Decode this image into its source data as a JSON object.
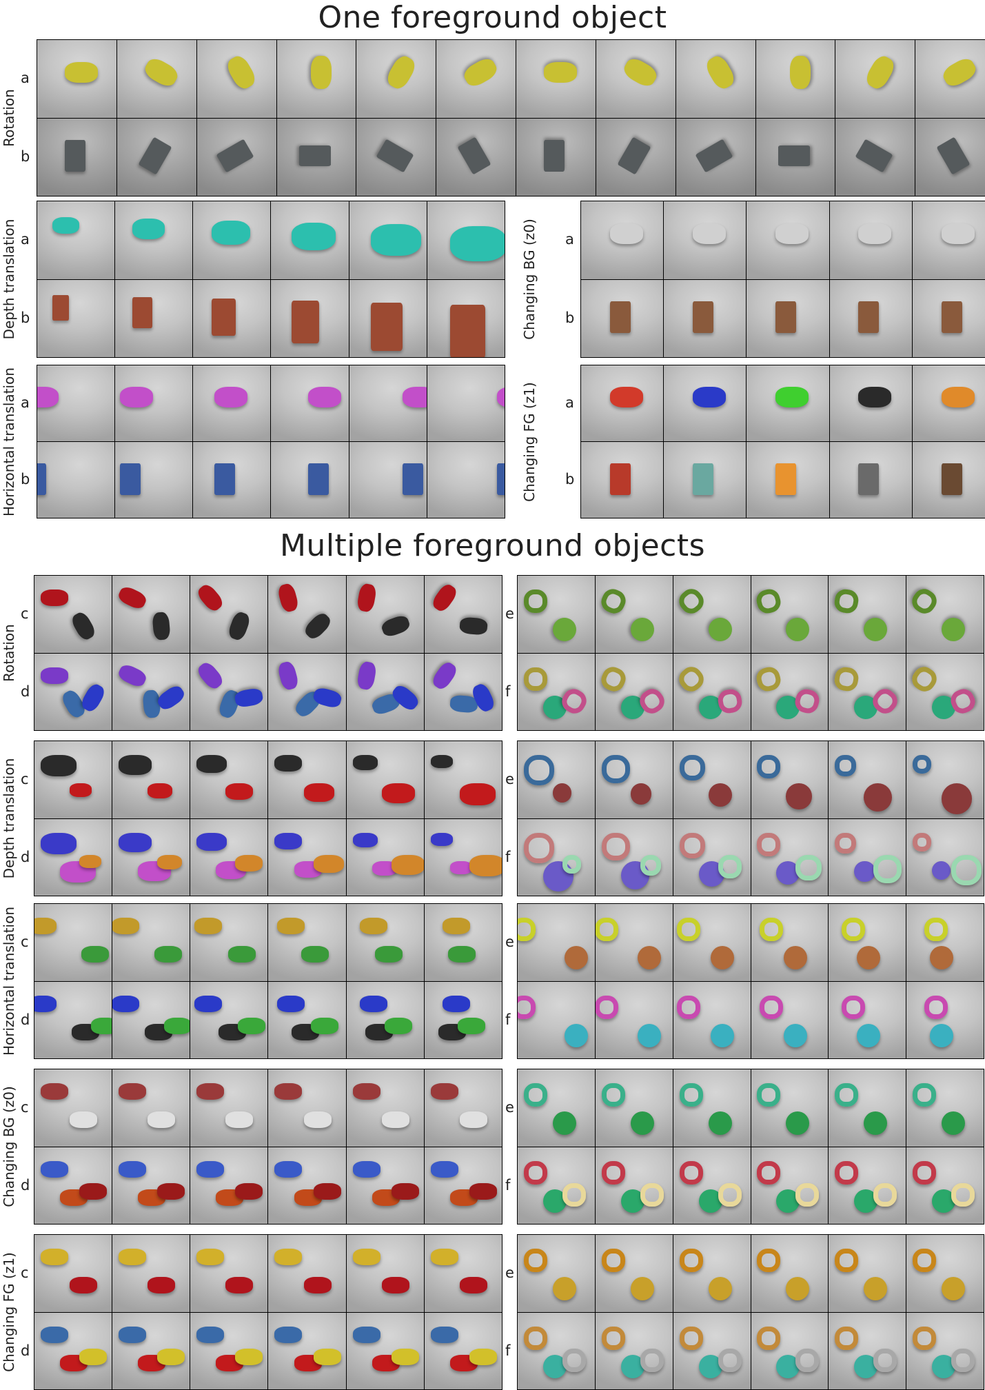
{
  "headings": {
    "one_object": "One foreground object",
    "multiple_objects": "Multiple foreground objects"
  },
  "single_groups": [
    {
      "label": "Rotation",
      "rows": [
        {
          "tag": "a",
          "object": "car",
          "colors": [
            "#c8c032"
          ]
        },
        {
          "tag": "b",
          "object": "chair",
          "colors": [
            "#555a5c"
          ]
        }
      ],
      "columns": 12
    },
    {
      "label": "Depth translation",
      "rows": [
        {
          "tag": "a",
          "object": "car",
          "colors": [
            "#2cbfae"
          ]
        },
        {
          "tag": "b",
          "object": "chair",
          "colors": [
            "#9c4a32"
          ]
        }
      ],
      "columns": 6
    },
    {
      "label": "Changing BG  (z0)",
      "rows": [
        {
          "tag": "a",
          "object": "car",
          "colors": [
            "#d0d0d0"
          ]
        },
        {
          "tag": "b",
          "object": "chair",
          "colors": [
            "#8a5a3c"
          ]
        }
      ],
      "columns": 5
    },
    {
      "label": "Horizontal translation",
      "rows": [
        {
          "tag": "a",
          "object": "car",
          "colors": [
            "#c24fc9"
          ]
        },
        {
          "tag": "b",
          "object": "chair",
          "colors": [
            "#3a5aa0"
          ]
        }
      ],
      "columns": 6
    },
    {
      "label": "Changing FG  (z1)",
      "rows": [
        {
          "tag": "a",
          "object": "car",
          "colors": [
            "#d23a2a",
            "#2a3ac8",
            "#3fcf2f",
            "#2a2a2a",
            "#e08a2a"
          ]
        },
        {
          "tag": "b",
          "object": "chair",
          "colors": [
            "#b83a2a",
            "#6aa8a0",
            "#e8932f",
            "#6a6a6a",
            "#6a4a32"
          ]
        }
      ],
      "columns": 5
    }
  ],
  "multi_groups": [
    {
      "label": "Rotation",
      "left": [
        {
          "tag": "c",
          "object": "cars",
          "colors": [
            "#b0141c",
            "#2a2a2a"
          ]
        },
        {
          "tag": "d",
          "object": "cars",
          "colors": [
            "#7a3ac8",
            "#3a6aa8",
            "#2a3ac8"
          ]
        }
      ],
      "right": [
        {
          "tag": "e",
          "object": "rings",
          "colors": [
            "#5a8a2a",
            "#6aa83a"
          ]
        },
        {
          "tag": "f",
          "object": "rings",
          "colors": [
            "#a89a3a",
            "#2aa87a",
            "#c24f8a"
          ]
        }
      ]
    },
    {
      "label": "Depth translation",
      "left": [
        {
          "tag": "c",
          "object": "cars",
          "colors": [
            "#2a2a2a",
            "#c21a1c"
          ]
        },
        {
          "tag": "d",
          "object": "cars",
          "colors": [
            "#3a3ac8",
            "#c24fc9",
            "#d2862a"
          ]
        }
      ],
      "right": [
        {
          "tag": "e",
          "object": "rings",
          "colors": [
            "#3a6a9a",
            "#8a3a3a"
          ]
        },
        {
          "tag": "f",
          "object": "rings",
          "colors": [
            "#c27a7a",
            "#6a5ac8",
            "#9ad8b0"
          ]
        }
      ]
    },
    {
      "label": "Horizontal translation",
      "left": [
        {
          "tag": "c",
          "object": "cars",
          "colors": [
            "#c29a2a",
            "#3a9a3a"
          ]
        },
        {
          "tag": "d",
          "object": "cars",
          "colors": [
            "#2a3ac8",
            "#2a2a2a",
            "#3aa83a"
          ]
        }
      ],
      "right": [
        {
          "tag": "e",
          "object": "rings",
          "colors": [
            "#c8d02a",
            "#b06a3a"
          ]
        },
        {
          "tag": "f",
          "object": "rings",
          "colors": [
            "#c84ab0",
            "#3ab0c0"
          ]
        }
      ]
    },
    {
      "label": "Changing BG  (z0)",
      "left": [
        {
          "tag": "c",
          "object": "cars",
          "colors": [
            "#9a3a3a",
            "#e0e0e0"
          ]
        },
        {
          "tag": "d",
          "object": "cars",
          "colors": [
            "#3a5ac8",
            "#c24a1a",
            "#9a1a1a"
          ]
        }
      ],
      "right": [
        {
          "tag": "e",
          "object": "rings",
          "colors": [
            "#3ab08a",
            "#2a9a4a"
          ]
        },
        {
          "tag": "f",
          "object": "rings",
          "colors": [
            "#c23a4a",
            "#2aa86a",
            "#e8d89a"
          ]
        }
      ]
    },
    {
      "label": "Changing FG  (z1)",
      "left": [
        {
          "tag": "c",
          "object": "cars",
          "colors": [
            "#d2b02a",
            "#b0141c"
          ]
        },
        {
          "tag": "d",
          "object": "cars",
          "colors": [
            "#3a6aa8",
            "#c21a1c",
            "#d2c02a"
          ]
        }
      ],
      "right": [
        {
          "tag": "e",
          "object": "rings",
          "colors": [
            "#c8861a",
            "#c8a02a"
          ]
        },
        {
          "tag": "f",
          "object": "rings",
          "colors": [
            "#c28a3a",
            "#3ab0a0",
            "#a8a8a8"
          ]
        }
      ]
    }
  ]
}
